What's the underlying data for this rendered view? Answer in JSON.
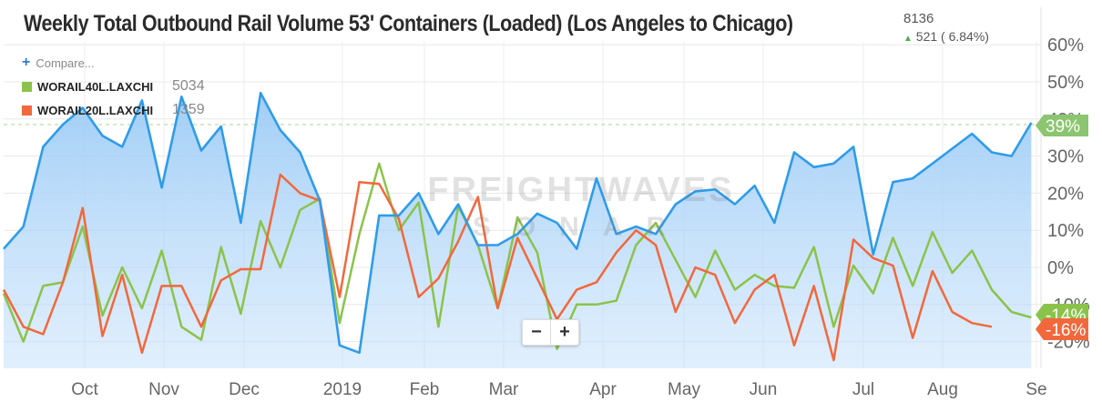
{
  "header": {
    "title": "Weekly Total Outbound Rail Volume 53' Containers (Loaded) (Los Angeles to Chicago)",
    "value": "8136",
    "change": "521 ( 6.84%)"
  },
  "legend": {
    "compare_label": "Compare...",
    "items": [
      {
        "name": "WORAIL40L.LAXCHI",
        "value": "5034",
        "color": "#8bc34a"
      },
      {
        "name": "WORAIL20L.LAXCHI",
        "value": "1359",
        "color": "#f2683c"
      }
    ]
  },
  "watermark": {
    "line1": "FREIGHTWAVES",
    "line2": "SONAR"
  },
  "zoom": {
    "minus": "−",
    "plus": "+"
  },
  "chart_data": {
    "type": "line",
    "title": "Weekly Total Outbound Rail Volume 53' Containers (Loaded) (Los Angeles to Chicago)",
    "x_ticks": [
      "Oct",
      "Nov",
      "Dec",
      "2019",
      "Feb",
      "Mar",
      "Apr",
      "May",
      "Jun",
      "Jul",
      "Aug",
      "Se"
    ],
    "y_ticks": [
      "60%",
      "50%",
      "40%",
      "30%",
      "20%",
      "10%",
      "0%",
      "-10%",
      "-20%"
    ],
    "y_tick_values": [
      60,
      50,
      40,
      30,
      20,
      10,
      0,
      -10,
      -20
    ],
    "ylim": [
      -27,
      63
    ],
    "reference_line": 38.5,
    "end_labels": [
      "39%",
      "-14%",
      "-16%"
    ],
    "grid": true,
    "colors": {
      "main": "#2e9cea",
      "area": "#bcdcfa",
      "s40": "#8bc34a",
      "s20": "#f2683c",
      "ref": "#8bc34a"
    },
    "series": [
      {
        "name": "",
        "color": "#2e9cea",
        "values": [
          5,
          11,
          32.5,
          38.5,
          43,
          35.5,
          32.5,
          45,
          21.5,
          46,
          31.5,
          38,
          12,
          47,
          37,
          31,
          18,
          -21,
          -23,
          14,
          14,
          20,
          9,
          17,
          6,
          6,
          9,
          14.5,
          12,
          5,
          24,
          9,
          11,
          9,
          17,
          20.5,
          21,
          17,
          22,
          12,
          31,
          27,
          28,
          32.5,
          3.5,
          23,
          24,
          28,
          32,
          36,
          31,
          30,
          39
        ]
      },
      {
        "name": "WORAIL40L.LAXCHI",
        "color": "#8bc34a",
        "values": [
          -7,
          -20,
          -5,
          -4,
          11,
          -13,
          0,
          -11,
          4.5,
          -16,
          -19.5,
          5.5,
          -12.5,
          12.5,
          0,
          15.5,
          18.5,
          -15,
          9,
          28,
          10,
          17.5,
          -16,
          16.5,
          6,
          -11,
          13.5,
          4,
          -22,
          -10,
          -10,
          -9,
          6,
          12,
          2,
          -8,
          4.5,
          -6,
          -2,
          -5,
          -5.5,
          5.5,
          -16,
          0.5,
          -7,
          8,
          -5,
          9.5,
          -1.5,
          4.5,
          -6,
          -12,
          -13.5
        ]
      },
      {
        "name": "WORAIL20L.LAXCHI",
        "color": "#f2683c",
        "values": [
          -6,
          -16,
          -18,
          -4,
          16,
          -18.5,
          -2,
          -23,
          -5,
          -5,
          -16,
          -3.5,
          -0.5,
          -0.5,
          25,
          20,
          18,
          -8,
          23,
          22.5,
          13,
          -8,
          -3,
          7,
          19,
          -11,
          8,
          -3,
          -14,
          -6,
          -4,
          4,
          10,
          6,
          -12,
          0,
          -2,
          -15,
          -6,
          -2,
          -21,
          -5,
          -25,
          7.5,
          2.5,
          0.5,
          -19,
          -1,
          -12,
          -15,
          -16
        ]
      }
    ]
  }
}
